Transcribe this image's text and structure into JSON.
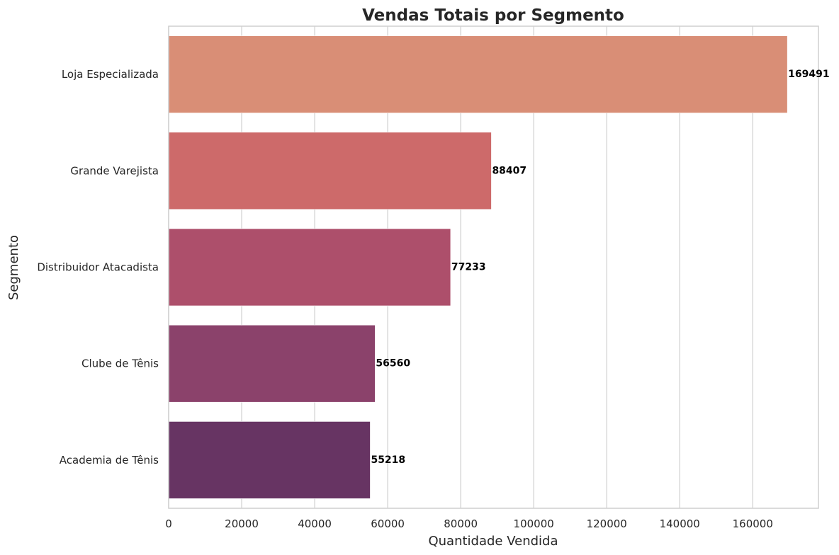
{
  "chart_data": {
    "type": "bar",
    "orientation": "horizontal",
    "title": "Vendas Totais por Segmento",
    "xlabel": "Quantidade Vendida",
    "ylabel": "Segmento",
    "categories": [
      "Loja Especializada",
      "Grande Varejista",
      "Distribuidor Atacadista",
      "Clube de Tênis",
      "Academia de Tênis"
    ],
    "values": [
      169491,
      88407,
      77233,
      56560,
      55218
    ],
    "data_labels": [
      "169491",
      "88407",
      "77233",
      "56560",
      "55218"
    ],
    "xlim": [
      0,
      178000
    ],
    "xticks": [
      0,
      20000,
      40000,
      60000,
      80000,
      100000,
      120000,
      140000,
      160000
    ],
    "xtick_labels": [
      "0",
      "20000",
      "40000",
      "60000",
      "80000",
      "100000",
      "120000",
      "140000",
      "160000"
    ],
    "grid": "vertical",
    "colors": [
      "#d98e76",
      "#cd6a6a",
      "#ad4f6b",
      "#8b426b",
      "#673463"
    ]
  }
}
